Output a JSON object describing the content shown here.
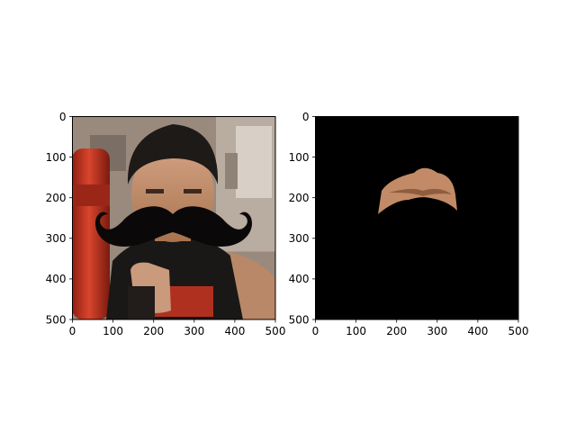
{
  "figure": {
    "background": "#ffffff",
    "axis_color": "#000000"
  },
  "chart_data": [
    {
      "type": "image",
      "title": "",
      "xlabel": "",
      "ylabel": "",
      "xlim": [
        0,
        500
      ],
      "ylim": [
        500,
        0
      ],
      "xticks": [
        0,
        100,
        200,
        300,
        400,
        500
      ],
      "yticks": [
        0,
        100,
        200,
        300,
        400,
        500
      ],
      "grid": false,
      "image_content": "photo of person in a boxing gym with black cartoon mustache overlay",
      "colors": {
        "background_wall": "#9a8a7e",
        "punching_bag": "#c8321e",
        "hair": "#1e1a18",
        "skin": "#c99a7c",
        "shirt": "#1a1816",
        "mustache": "#0a0808"
      }
    },
    {
      "type": "image",
      "title": "",
      "xlabel": "",
      "ylabel": "",
      "xlim": [
        0,
        500
      ],
      "ylim": [
        500,
        0
      ],
      "xticks": [
        0,
        100,
        200,
        300,
        400,
        500
      ],
      "yticks": [
        0,
        100,
        200,
        300,
        400,
        500
      ],
      "grid": false,
      "image_content": "black mask with mustache-shaped skin region cut out",
      "colors": {
        "background": "#000000",
        "skin": "#c28a66"
      }
    }
  ]
}
